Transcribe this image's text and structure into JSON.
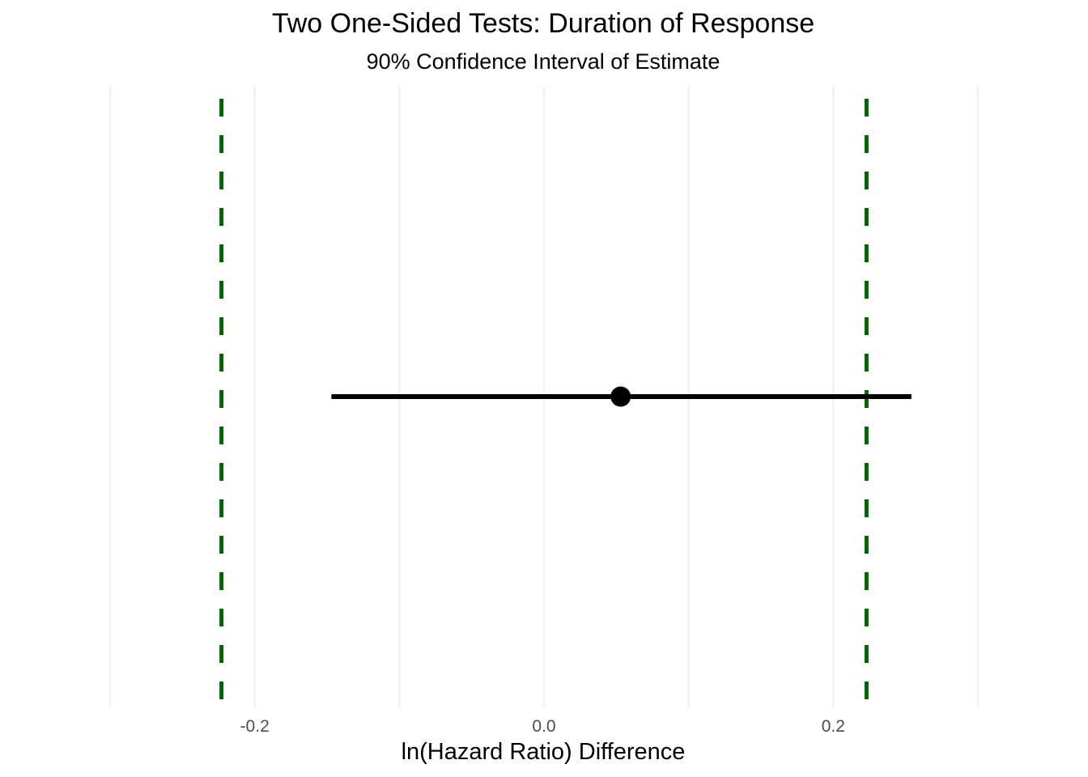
{
  "chart_data": {
    "type": "errorbar",
    "title": "Two One-Sided Tests: Duration of Response",
    "subtitle": "90% Confidence Interval of Estimate",
    "xlabel": "ln(Hazard Ratio) Difference",
    "ylabel": "",
    "xlim": [
      -0.3,
      0.3
    ],
    "x_ticks": [
      -0.2,
      0.0,
      0.2
    ],
    "x_tick_labels": [
      "-0.2",
      "0.0",
      "0.2"
    ],
    "x_minor_ticks": [
      -0.3,
      -0.1,
      0.1,
      0.3
    ],
    "grid": true,
    "legend": "none",
    "estimate": 0.053,
    "ci_lower": -0.147,
    "ci_upper": 0.254,
    "equivalence_bounds": [
      -0.223,
      0.223
    ],
    "colors": {
      "bounds": "#006400",
      "estimate": "#000000",
      "grid": "#ebebeb",
      "tick_text": "#4d4d4d"
    }
  }
}
